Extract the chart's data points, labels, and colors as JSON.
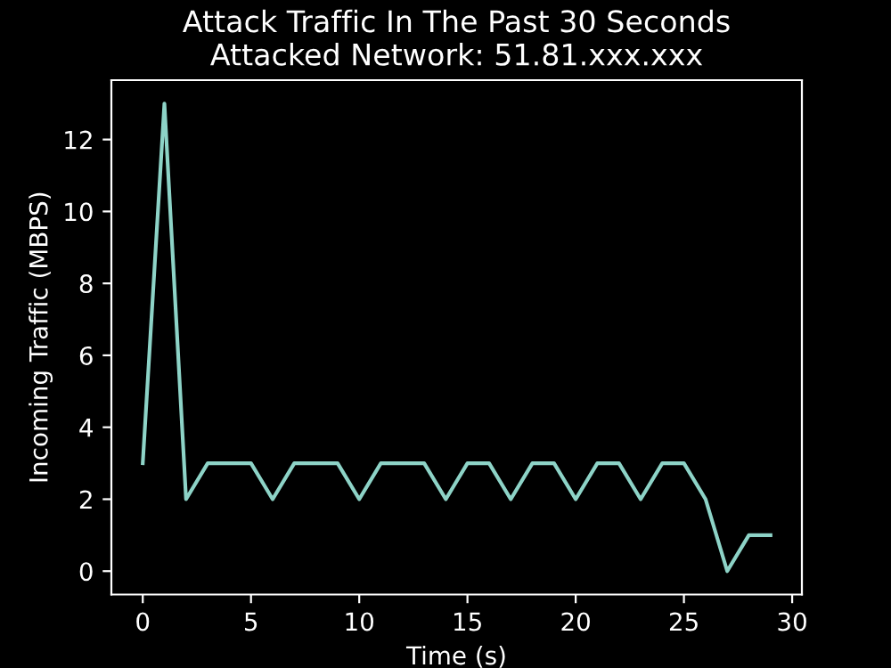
{
  "chart_data": {
    "type": "line",
    "title": "Attack Traffic In The Past 30 Seconds\nAttacked Network: 51.81.xxx.xxx",
    "xlabel": "Time (s)",
    "ylabel": "Incoming Traffic (MBPS)",
    "x": [
      0,
      1,
      2,
      3,
      4,
      5,
      6,
      7,
      8,
      9,
      10,
      11,
      12,
      13,
      14,
      15,
      16,
      17,
      18,
      19,
      20,
      21,
      22,
      23,
      24,
      25,
      26,
      27,
      28,
      29
    ],
    "series": [
      {
        "color": "#8dd3c7",
        "values": [
          3,
          13,
          2,
          3,
          3,
          3,
          2,
          3,
          3,
          3,
          2,
          3,
          3,
          3,
          2,
          3,
          3,
          2,
          3,
          3,
          2,
          3,
          3,
          2,
          3,
          3,
          2,
          0,
          1,
          1
        ]
      }
    ],
    "xlim": [
      -1.45,
      30.45
    ],
    "ylim": [
      -0.65,
      13.65
    ],
    "xticks": [
      0,
      5,
      10,
      15,
      20,
      25,
      30
    ],
    "yticks": [
      0,
      2,
      4,
      6,
      8,
      10,
      12
    ],
    "grid": false,
    "legend": false,
    "marker": "none",
    "line_style": "solid"
  }
}
